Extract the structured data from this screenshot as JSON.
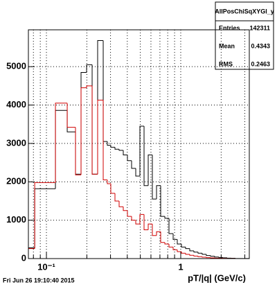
{
  "chart_data": {
    "type": "histogram",
    "x_label": "pT/|q| (GeV/c)",
    "footer": "Fri Jun 26 19:10:40 2015",
    "log_x": true,
    "grid": true,
    "xlim": [
      0.0734,
      3.24
    ],
    "ylim": [
      0,
      5960
    ],
    "xticks": [
      {
        "value": 0.1,
        "label": "10⁻¹"
      },
      1
    ],
    "xminor": [
      0.08,
      0.09,
      0.2,
      0.3,
      0.4,
      0.5,
      0.6,
      0.7,
      0.8,
      0.9,
      2,
      3
    ],
    "yticks": [
      0,
      1000,
      2000,
      3000,
      4000,
      5000
    ],
    "bins": [
      0.0734,
      0.0818,
      0.1167,
      0.1428,
      0.1646,
      0.181,
      0.1991,
      0.2189,
      0.2406,
      0.2647,
      0.2841,
      0.3015,
      0.3238,
      0.3477,
      0.3734,
      0.401,
      0.4306,
      0.4624,
      0.4965,
      0.5332,
      0.5726,
      0.6148,
      0.6603,
      0.709,
      0.7614,
      0.8176,
      0.8779,
      0.9424,
      1.012,
      1.087,
      1.167,
      1.253,
      1.346,
      1.445,
      1.551,
      1.666,
      1.789,
      1.921,
      2.063,
      2.215,
      2.378,
      2.554,
      3.24
    ],
    "series": [
      {
        "color": "#000000",
        "values": [
          280,
          1820,
          3860,
          3300,
          2200,
          4850,
          5050,
          2200,
          5680,
          3050,
          2950,
          2900,
          2850,
          2820,
          2700,
          2550,
          2350,
          2150,
          3450,
          1900,
          2700,
          1550,
          1900,
          1100,
          1050,
          650,
          500,
          380,
          300,
          260,
          200,
          170,
          140,
          110,
          80,
          60,
          40,
          30,
          20,
          12,
          8,
          3
        ]
      },
      {
        "color": "#d00000",
        "values": [
          260,
          1980,
          4050,
          3420,
          2180,
          4450,
          4500,
          2200,
          4130,
          2050,
          1950,
          1700,
          1500,
          1350,
          1250,
          1100,
          1000,
          900,
          1150,
          750,
          900,
          600,
          700,
          420,
          380,
          300,
          230,
          180,
          140,
          110,
          85,
          65,
          50,
          35,
          25,
          18,
          12,
          8,
          5,
          3,
          2,
          1
        ]
      }
    ],
    "stats": {
      "title": "AllPosChiSqXYGl_y",
      "rows": [
        {
          "label": "Entries",
          "value": 142311
        },
        {
          "label": "Mean",
          "value": 0.4343
        },
        {
          "label": "RMS",
          "value": 0.2463
        }
      ]
    }
  }
}
